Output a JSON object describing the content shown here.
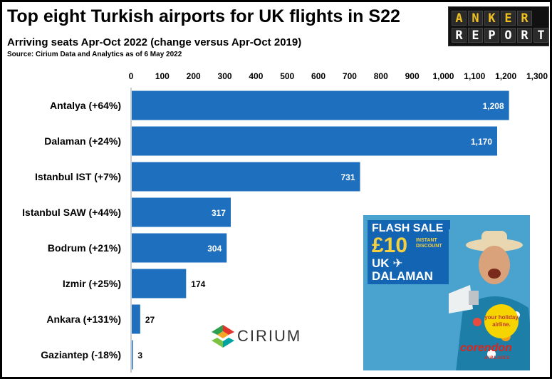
{
  "header": {
    "title": "Top eight Turkish airports for UK flights in S22",
    "subtitle": "Arriving seats Apr-Oct 2022 (change versus Apr-Oct 2019)",
    "source": "Source: Cirium Data and Analytics as of 6 May 2022"
  },
  "logo": {
    "line1": "ANKER",
    "line2": "REPORT"
  },
  "ad": {
    "flash": "FLASH SALE",
    "price": "£10",
    "instant": "INSTANT DISCOUNT",
    "dest_line1": "UK ✈",
    "dest_line2": "DALAMAN",
    "sticker": "your holiday airline.",
    "brand": "corendon",
    "brand_sub": "AIRLINES"
  },
  "cirium": {
    "text": "CIRIUM"
  },
  "chart_data": {
    "type": "bar",
    "orientation": "horizontal",
    "title": "Top eight Turkish airports for UK flights in S22",
    "subtitle": "Arriving seats Apr-Oct 2022 (change versus Apr-Oct 2019)",
    "categories": [
      "Antalya (+64%)",
      "Dalaman (+24%)",
      "Istanbul IST (+7%)",
      "Istanbul SAW (+44%)",
      "Bodrum (+21%)",
      "Izmir (+25%)",
      "Ankara (+131%)",
      "Gaziantep (-18%)"
    ],
    "values": [
      1208,
      1170,
      731,
      317,
      304,
      174,
      27,
      3
    ],
    "value_labels": [
      "1,208",
      "1,170",
      "731",
      "317",
      "304",
      "174",
      "27",
      "3"
    ],
    "xlim": [
      0,
      1300
    ],
    "xticks": [
      "0",
      "100",
      "200",
      "300",
      "400",
      "500",
      "600",
      "700",
      "800",
      "900",
      "1,000",
      "1,100",
      "1,200",
      "1,300"
    ],
    "axis_position": "top",
    "grid": false,
    "bar_color": "#1f6fbf",
    "label_color_inside": "#ffffff",
    "label_color_outside": "#000000"
  }
}
